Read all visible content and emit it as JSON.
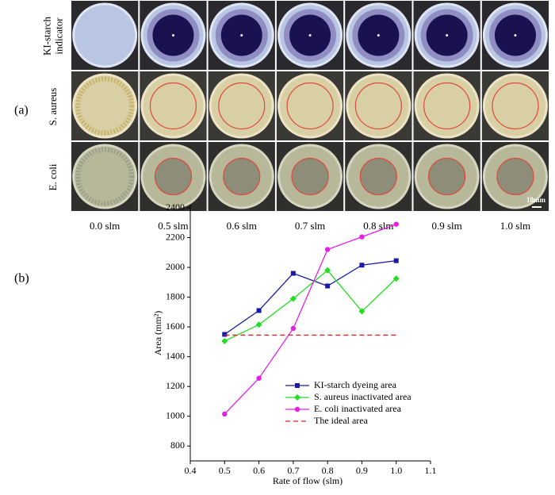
{
  "panel_a": {
    "label": "(a)",
    "row_labels": [
      [
        "KI-starch",
        "indicator"
      ],
      [
        "S. aureus"
      ],
      [
        "E.  coli"
      ]
    ],
    "column_labels": [
      "0.0 slm",
      "0.5 slm",
      "0.6 slm",
      "0.7 slm",
      "0.8 slm",
      "0.9 slm",
      "1.0 slm"
    ],
    "scale_bar": "10mm"
  },
  "chart_data": {
    "type": "line",
    "panel_label": "(b)",
    "x_label": "Rate of flow (slm)",
    "y_label": "Area (mm²)",
    "x": [
      0.5,
      0.6,
      0.7,
      0.8,
      0.9,
      1.0
    ],
    "xlim": [
      0.4,
      1.1
    ],
    "xticks": [
      0.4,
      0.5,
      0.6,
      0.7,
      0.8,
      0.9,
      {
        "value": 1,
        "label": "1.0"
      },
      1.1
    ],
    "ylim": [
      700,
      2400
    ],
    "yticks": [
      800,
      1000,
      1200,
      1400,
      1600,
      1800,
      2000,
      2200,
      2400
    ],
    "series": [
      {
        "name": "KI-starch dyeing area",
        "color": "#1a1aa6",
        "marker": "square",
        "values": [
          1550,
          1710,
          1960,
          1875,
          2015,
          2045
        ]
      },
      {
        "name": "S. aureus inactivated area",
        "color": "#22dd22",
        "marker": "diamond",
        "values": [
          1505,
          1615,
          1790,
          1980,
          1705,
          1925
        ]
      },
      {
        "name": "E. coli  inactivated area",
        "color": "#e61ee6",
        "marker": "circle",
        "values": [
          1015,
          1255,
          1590,
          2120,
          2205,
          2290
        ]
      },
      {
        "name": "The ideal area",
        "color": "#e02020",
        "dash": true,
        "values": [
          1545,
          1545,
          1545,
          1545,
          1545,
          1545
        ]
      }
    ]
  }
}
